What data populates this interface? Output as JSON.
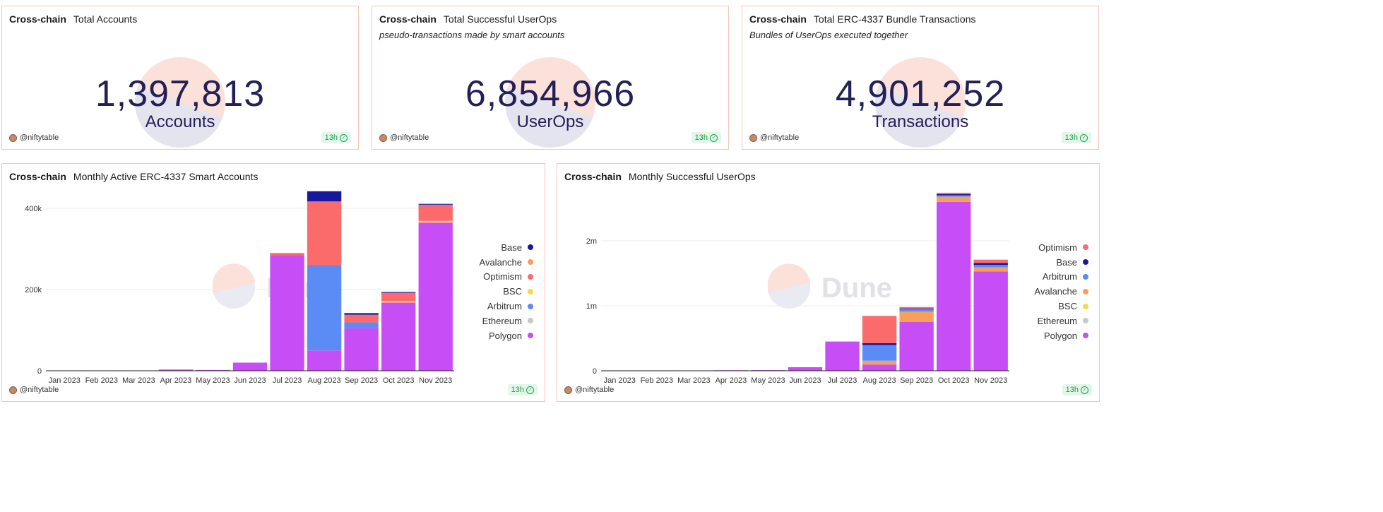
{
  "cards": [
    {
      "chain": "Cross-chain",
      "title": "Total Accounts",
      "subtitle": "",
      "value": "1,397,813",
      "unit": "Accounts",
      "author": "@niftytable",
      "freshness": "13h"
    },
    {
      "chain": "Cross-chain",
      "title": "Total Successful UserOps",
      "subtitle": "pseudo-transactions made by smart accounts",
      "value": "6,854,966",
      "unit": "UserOps",
      "author": "@niftytable",
      "freshness": "13h"
    },
    {
      "chain": "Cross-chain",
      "title": "Total ERC-4337 Bundle Transactions",
      "subtitle": "Bundles of UserOps executed together",
      "value": "4,901,252",
      "unit": "Transactions",
      "author": "@niftytable",
      "freshness": "13h"
    }
  ],
  "panels": [
    {
      "chain": "Cross-chain",
      "title": "Monthly Active ERC-4337 Smart Accounts",
      "watermark": "Dune",
      "author": "@niftytable",
      "freshness": "13h"
    },
    {
      "chain": "Cross-chain",
      "title": "Monthly Successful UserOps",
      "watermark": "Dune",
      "author": "@niftytable",
      "freshness": "13h"
    }
  ],
  "chart_data": [
    {
      "type": "bar",
      "stacked": true,
      "categories": [
        "Jan 2023",
        "Feb 2023",
        "Mar 2023",
        "Apr 2023",
        "May 2023",
        "Jun 2023",
        "Jul 2023",
        "Aug 2023",
        "Sep 2023",
        "Oct 2023",
        "Nov 2023"
      ],
      "ylim": [
        0,
        440000
      ],
      "yticks": [
        0,
        200000,
        400000
      ],
      "ytick_labels": [
        "0",
        "200k",
        "400k"
      ],
      "legend_position": "right",
      "grid": true,
      "series": [
        {
          "name": "Polygon",
          "color": "#c74ef7",
          "values": [
            500,
            500,
            500,
            3000,
            2000,
            20000,
            285000,
            50000,
            105000,
            168000,
            365000
          ]
        },
        {
          "name": "Ethereum",
          "color": "#c8c8c8",
          "values": [
            0,
            0,
            0,
            0,
            0,
            0,
            0,
            0,
            0,
            0,
            0
          ]
        },
        {
          "name": "Arbitrum",
          "color": "#5b8cf6",
          "values": [
            0,
            0,
            0,
            0,
            0,
            0,
            0,
            210000,
            14000,
            0,
            0
          ]
        },
        {
          "name": "BSC",
          "color": "#f6d94a",
          "values": [
            0,
            0,
            0,
            0,
            0,
            0,
            0,
            0,
            0,
            4000,
            4000
          ]
        },
        {
          "name": "Optimism",
          "color": "#fb6b6b",
          "values": [
            0,
            0,
            0,
            0,
            0,
            0,
            5000,
            157000,
            19000,
            20000,
            40000
          ]
        },
        {
          "name": "Avalanche",
          "color": "#f8a05a",
          "values": [
            0,
            0,
            0,
            0,
            0,
            0,
            0,
            0,
            0,
            0,
            0
          ]
        },
        {
          "name": "Base",
          "color": "#16199e",
          "values": [
            0,
            0,
            0,
            0,
            0,
            0,
            0,
            25000,
            4000,
            2000,
            2000
          ]
        }
      ],
      "legend_order": [
        "Base",
        "Avalanche",
        "Optimism",
        "BSC",
        "Arbitrum",
        "Ethereum",
        "Polygon"
      ]
    },
    {
      "type": "bar",
      "stacked": true,
      "categories": [
        "Jan 2023",
        "Feb 2023",
        "Mar 2023",
        "Apr 2023",
        "May 2023",
        "Jun 2023",
        "Jul 2023",
        "Aug 2023",
        "Sep 2023",
        "Oct 2023",
        "Nov 2023"
      ],
      "ylim": [
        0,
        2750000
      ],
      "yticks": [
        0,
        1000000,
        2000000
      ],
      "ytick_labels": [
        "0",
        "1m",
        "2m"
      ],
      "legend_position": "right",
      "grid": true,
      "series": [
        {
          "name": "Polygon",
          "color": "#c74ef7",
          "values": [
            2000,
            2000,
            3000,
            8000,
            10000,
            55000,
            450000,
            95000,
            750000,
            2600000,
            1530000
          ]
        },
        {
          "name": "Ethereum",
          "color": "#c8c8c8",
          "values": [
            0,
            0,
            0,
            0,
            0,
            0,
            0,
            0,
            0,
            0,
            0
          ]
        },
        {
          "name": "BSC",
          "color": "#f6d94a",
          "values": [
            0,
            0,
            0,
            0,
            0,
            0,
            0,
            0,
            0,
            0,
            0
          ]
        },
        {
          "name": "Avalanche",
          "color": "#f8a05a",
          "values": [
            0,
            0,
            0,
            0,
            0,
            0,
            0,
            60000,
            160000,
            80000,
            60000
          ]
        },
        {
          "name": "Arbitrum",
          "color": "#5b8cf6",
          "values": [
            0,
            0,
            0,
            0,
            0,
            0,
            0,
            240000,
            40000,
            20000,
            40000
          ]
        },
        {
          "name": "Base",
          "color": "#16199e",
          "values": [
            0,
            0,
            0,
            0,
            0,
            0,
            0,
            30000,
            10000,
            20000,
            30000
          ]
        },
        {
          "name": "Optimism",
          "color": "#fb6b6b",
          "values": [
            0,
            0,
            0,
            0,
            0,
            0,
            0,
            420000,
            20000,
            20000,
            50000
          ]
        }
      ],
      "legend_order": [
        "Optimism",
        "Base",
        "Arbitrum",
        "Avalanche",
        "BSC",
        "Ethereum",
        "Polygon"
      ]
    }
  ]
}
